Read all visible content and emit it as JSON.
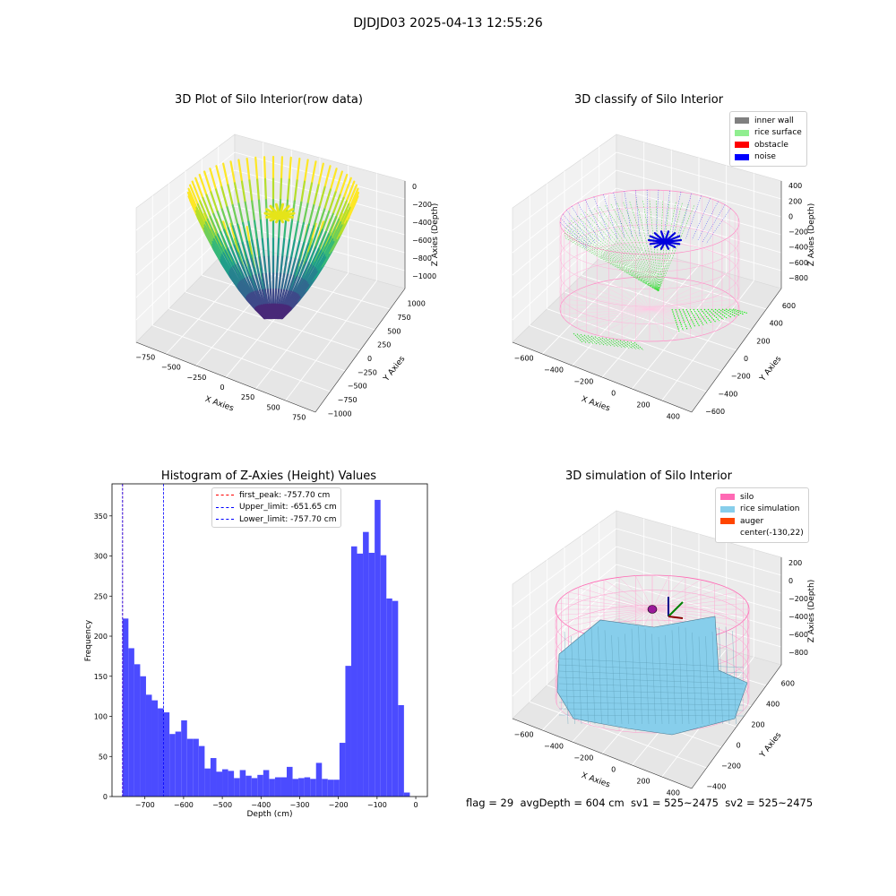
{
  "suptitle": "DJDJD03 2025-04-13 12:55:26",
  "footer": "flag = 29  avgDepth = 604 cm  sv1 = 525~2475  sv2 = 525~2475",
  "colors": {
    "hist_bar": "#4b4bff",
    "first_peak": "#ff0000",
    "limits": "#0000ff"
  },
  "chart_data": [
    {
      "type": "scatter",
      "title": "3D Plot of Silo Interior(row data)",
      "xlabel": "X Axies",
      "ylabel": "Y Axies",
      "zlabel": "Z Axies (Depth)",
      "xticks": [
        "−750",
        "−500",
        "−250",
        "0",
        "250",
        "500",
        "750"
      ],
      "yticks": [
        "−1000",
        "−750",
        "−500",
        "−250",
        "0",
        "250",
        "500",
        "750",
        "1000"
      ],
      "zticks": [
        "0",
        "−200",
        "−400",
        "−600",
        "−800",
        "−1000"
      ],
      "xlim": [
        -900,
        800
      ],
      "ylim": [
        -1000,
        1000
      ],
      "zlim": [
        -1050,
        0
      ],
      "colormap": "viridis"
    },
    {
      "type": "scatter",
      "title": "3D classify of Silo Interior",
      "xlabel": "X Axies",
      "ylabel": "Y Axies",
      "zlabel": "Z Axies (Depth)",
      "xticks": [
        "−600",
        "−400",
        "−200",
        "0",
        "200",
        "400"
      ],
      "yticks": [
        "−600",
        "−400",
        "−200",
        "0",
        "200",
        "400",
        "600"
      ],
      "zticks": [
        "400",
        "200",
        "0",
        "−200",
        "−400",
        "−600",
        "−800"
      ],
      "legend": [
        {
          "label": "inner wall",
          "color": "#808080"
        },
        {
          "label": "rice surface",
          "color": "#90ee90"
        },
        {
          "label": "obstacle",
          "color": "#ff0000"
        },
        {
          "label": "noise",
          "color": "#0000ff"
        }
      ]
    },
    {
      "type": "bar",
      "title": "Histogram of Z-Axies (Height) Values",
      "xlabel": "Depth (cm)",
      "ylabel": "Frequency",
      "xlim": [
        -785,
        30
      ],
      "ylim": [
        0,
        390
      ],
      "xticks": [
        -700,
        -600,
        -500,
        -400,
        -300,
        -200,
        -100,
        0
      ],
      "xtick_labels": [
        "−700",
        "−600",
        "−500",
        "−400",
        "−300",
        "−200",
        "−100",
        "0"
      ],
      "yticks": [
        0,
        50,
        100,
        150,
        200,
        250,
        300,
        350
      ],
      "bin_start": -757.7,
      "bin_width": 15.15,
      "values": [
        222,
        185,
        165,
        150,
        127,
        120,
        110,
        105,
        78,
        81,
        95,
        72,
        72,
        63,
        35,
        48,
        31,
        34,
        32,
        23,
        33,
        26,
        23,
        27,
        33,
        22,
        24,
        24,
        37,
        22,
        23,
        24,
        22,
        42,
        22,
        21,
        21,
        67,
        163,
        312,
        303,
        330,
        304,
        370,
        301,
        247,
        244,
        114,
        5
      ],
      "vlines": [
        {
          "label": "first_peak: -757.70 cm",
          "x": -757.7,
          "color": "#ff0000"
        },
        {
          "label": "Upper_limit: -651.65 cm",
          "x": -651.65,
          "color": "#0000ff"
        },
        {
          "label": "Lower_limit: -757.70 cm",
          "x": -757.7,
          "color": "#0000ff"
        }
      ]
    },
    {
      "type": "surface",
      "title": "3D simulation of Silo Interior",
      "xlabel": "X Axies",
      "ylabel": "Y Axies",
      "zlabel": "Z Axies (Depth)",
      "xticks": [
        "−600",
        "−400",
        "−200",
        "0",
        "200",
        "400"
      ],
      "yticks": [
        "−400",
        "−200",
        "0",
        "200",
        "400",
        "600"
      ],
      "zticks": [
        "200",
        "0",
        "−200",
        "−400",
        "−600",
        "−800"
      ],
      "legend": [
        {
          "label": "silo",
          "color": "#ff69b4"
        },
        {
          "label": "rice simulation",
          "color": "#87ceeb"
        },
        {
          "label": "auger",
          "color": "#ff4500"
        },
        {
          "label": "center(-130,22)",
          "color": ""
        }
      ]
    }
  ]
}
